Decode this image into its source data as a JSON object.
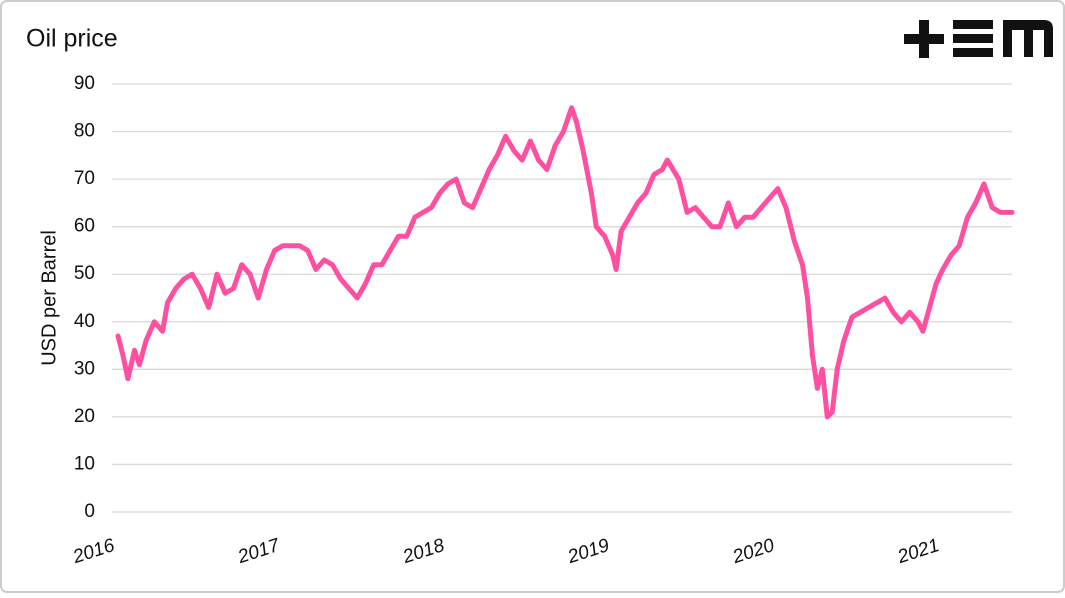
{
  "chart_data": {
    "type": "line",
    "title": "Oil price",
    "y_label": "USD per Barrel",
    "color": "#ff4fa0",
    "x": [
      2016.0,
      2016.03,
      2016.06,
      2016.1,
      2016.13,
      2016.17,
      2016.22,
      2016.27,
      2016.3,
      2016.35,
      2016.4,
      2016.45,
      2016.5,
      2016.55,
      2016.6,
      2016.65,
      2016.7,
      2016.75,
      2016.8,
      2016.85,
      2016.9,
      2016.95,
      2017.0,
      2017.1,
      2017.15,
      2017.2,
      2017.25,
      2017.3,
      2017.35,
      2017.4,
      2017.45,
      2017.5,
      2017.55,
      2017.6,
      2017.65,
      2017.7,
      2017.75,
      2017.8,
      2017.85,
      2017.9,
      2017.95,
      2018.0,
      2018.05,
      2018.1,
      2018.15,
      2018.2,
      2018.25,
      2018.3,
      2018.35,
      2018.4,
      2018.45,
      2018.5,
      2018.55,
      2018.6,
      2018.65,
      2018.7,
      2018.75,
      2018.78,
      2018.82,
      2018.87,
      2018.9,
      2018.95,
      2019.0,
      2019.02,
      2019.05,
      2019.1,
      2019.15,
      2019.2,
      2019.25,
      2019.3,
      2019.33,
      2019.4,
      2019.45,
      2019.5,
      2019.55,
      2019.6,
      2019.65,
      2019.7,
      2019.75,
      2019.8,
      2019.85,
      2019.9,
      2019.95,
      2020.0,
      2020.05,
      2020.1,
      2020.15,
      2020.18,
      2020.21,
      2020.24,
      2020.27,
      2020.3,
      2020.33,
      2020.36,
      2020.4,
      2020.45,
      2020.5,
      2020.55,
      2020.6,
      2020.65,
      2020.7,
      2020.75,
      2020.8,
      2020.85,
      2020.88,
      2020.92,
      2020.96,
      2021.0,
      2021.05,
      2021.1,
      2021.15,
      2021.2,
      2021.25,
      2021.3,
      2021.35,
      2021.42
    ],
    "values": [
      37,
      33,
      28,
      34,
      31,
      36,
      40,
      38,
      44,
      47,
      49,
      50,
      47,
      43,
      50,
      46,
      47,
      52,
      50,
      45,
      51,
      55,
      56,
      56,
      55,
      51,
      53,
      52,
      49,
      47,
      45,
      48,
      52,
      52,
      55,
      58,
      58,
      62,
      63,
      64,
      67,
      69,
      70,
      65,
      64,
      68,
      72,
      75,
      79,
      76,
      74,
      78,
      74,
      72,
      77,
      80,
      85,
      82,
      76,
      67,
      60,
      58,
      54,
      51,
      59,
      62,
      65,
      67,
      71,
      72,
      74,
      70,
      63,
      64,
      62,
      60,
      60,
      65,
      60,
      62,
      62,
      64,
      66,
      68,
      64,
      57,
      52,
      45,
      33,
      26,
      30,
      20,
      21,
      30,
      36,
      41,
      42,
      43,
      44,
      45,
      42,
      40,
      42,
      40,
      38,
      43,
      48,
      51,
      54,
      56,
      62,
      65,
      69,
      64,
      63,
      63
    ],
    "xlim": [
      2016,
      2021.42
    ],
    "xticks": [
      2016,
      2017,
      2018,
      2019,
      2020,
      2021
    ],
    "ylim": [
      0,
      90
    ],
    "yticks": [
      0,
      10,
      20,
      30,
      40,
      50,
      60,
      70,
      80,
      90
    ],
    "grid": true
  }
}
